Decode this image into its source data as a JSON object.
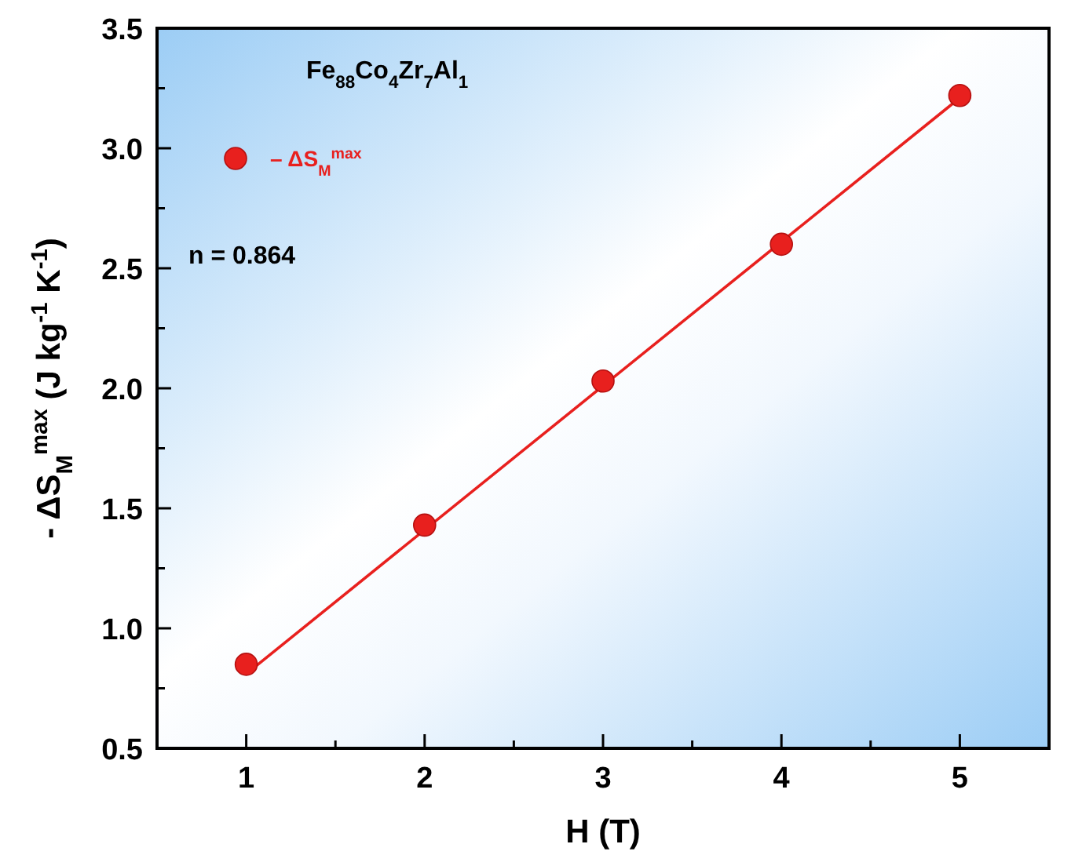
{
  "chart_data": {
    "type": "scatter",
    "xlabel": "H (T)",
    "ylabel": "- ΔS$_{M}$$^{max}$ (J kg$^{-1}$ K$^{-1}$)",
    "annotations": [
      "Fe$_{88}$Co$_{4}$Zr$_{7}$Al$_{1}$",
      "n = 0.864"
    ],
    "xlim": [
      0.5,
      5.5
    ],
    "xticks": [
      1,
      {
        "value": 1.5,
        "label": null
      },
      2,
      {
        "value": 2.5,
        "label": null
      },
      3,
      {
        "value": 3.5,
        "label": null
      },
      4,
      {
        "value": 4.5,
        "label": null
      },
      5
    ],
    "ylim": [
      0.5,
      3.5
    ],
    "yticks": [
      "0.5",
      {
        "value": 0.75,
        "label": null
      },
      {
        "value": 1,
        "label": "1.0"
      },
      {
        "value": 1.25,
        "label": null
      },
      {
        "value": 1.5,
        "label": "1.5"
      },
      {
        "value": 1.75,
        "label": null
      },
      {
        "value": 2,
        "label": "2.0"
      },
      {
        "value": 2.25,
        "label": null
      },
      {
        "value": 2.5,
        "label": "2.5"
      },
      {
        "value": 2.75,
        "label": null
      },
      {
        "value": 3,
        "label": "3.0"
      },
      {
        "value": 3.25,
        "label": null
      },
      {
        "value": 3.5,
        "label": "3.5"
      }
    ],
    "series": [
      {
        "name": "– ΔS$_{M}$$^{max}$",
        "color": "#e8201e",
        "x": [
          1,
          2,
          3,
          4,
          5
        ],
        "values": [
          0.85,
          1.43,
          2.03,
          2.6,
          3.22
        ],
        "marker": "circle"
      },
      {
        "type": "line",
        "color": "#e8201e",
        "x": [
          1,
          5
        ],
        "values": [
          0.81,
          3.21
        ],
        "line_style": "solid"
      }
    ],
    "legend": "top left",
    "grid": false
  }
}
